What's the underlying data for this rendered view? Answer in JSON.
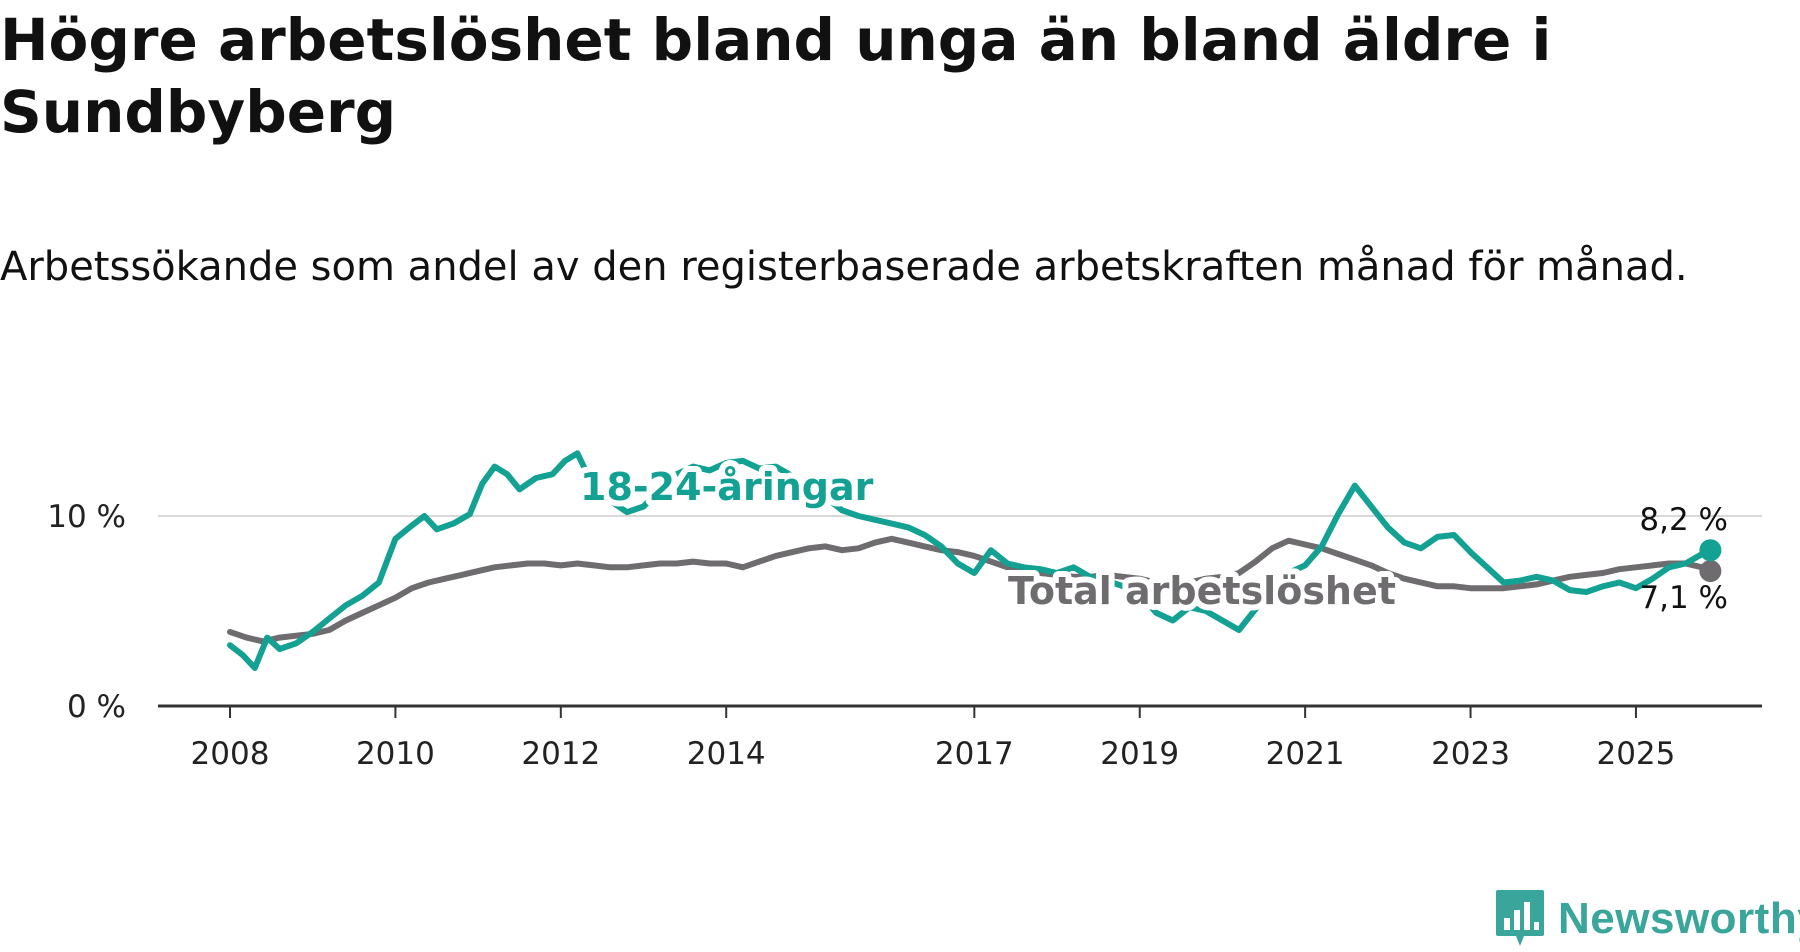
{
  "title": "Högre arbetslöshet bland unga än bland äldre i Sundbyberg",
  "subtitle": "Arbetssökande som andel av den registerbaserade arbetskraften månad för månad.",
  "logo": {
    "text": "Newsworthy",
    "icon": "bar-chart-speech-bubble-icon",
    "color": "#3aa59b"
  },
  "chart_data": {
    "type": "line",
    "title": "Högre arbetslöshet bland unga än bland äldre i Sundbyberg",
    "xlabel": "",
    "ylabel": "",
    "x_unit": "year",
    "xlim": [
      2008.0,
      2026.5
    ],
    "ylim": [
      0,
      12.5
    ],
    "y_ticks": [
      0,
      10
    ],
    "y_tick_labels": [
      "0 %",
      "10 %"
    ],
    "x_ticks": [
      2008,
      2010,
      2012,
      2014,
      2017,
      2019,
      2021,
      2023,
      2025
    ],
    "x_tick_labels": [
      "2008",
      "2010",
      "2012",
      "2014",
      "2017",
      "2019",
      "2021",
      "2023",
      "2025"
    ],
    "grid": "horizontal at 10",
    "series": [
      {
        "name": "Total arbetslöshet",
        "color": "#6f6c70",
        "label": "Total arbetslöshet",
        "end_label": "7,1 %",
        "end_value": 7.1,
        "points": [
          [
            2008.0,
            3.9
          ],
          [
            2008.2,
            3.6
          ],
          [
            2008.4,
            3.4
          ],
          [
            2008.6,
            3.6
          ],
          [
            2008.8,
            3.7
          ],
          [
            2009.0,
            3.8
          ],
          [
            2009.2,
            4.0
          ],
          [
            2009.4,
            4.5
          ],
          [
            2009.6,
            4.9
          ],
          [
            2009.8,
            5.3
          ],
          [
            2010.0,
            5.7
          ],
          [
            2010.2,
            6.2
          ],
          [
            2010.4,
            6.5
          ],
          [
            2010.6,
            6.7
          ],
          [
            2010.8,
            6.9
          ],
          [
            2011.0,
            7.1
          ],
          [
            2011.2,
            7.3
          ],
          [
            2011.4,
            7.4
          ],
          [
            2011.6,
            7.5
          ],
          [
            2011.8,
            7.5
          ],
          [
            2012.0,
            7.4
          ],
          [
            2012.2,
            7.5
          ],
          [
            2012.4,
            7.4
          ],
          [
            2012.6,
            7.3
          ],
          [
            2012.8,
            7.3
          ],
          [
            2013.0,
            7.4
          ],
          [
            2013.2,
            7.5
          ],
          [
            2013.4,
            7.5
          ],
          [
            2013.6,
            7.6
          ],
          [
            2013.8,
            7.5
          ],
          [
            2014.0,
            7.5
          ],
          [
            2014.2,
            7.3
          ],
          [
            2014.4,
            7.6
          ],
          [
            2014.6,
            7.9
          ],
          [
            2014.8,
            8.1
          ],
          [
            2015.0,
            8.3
          ],
          [
            2015.2,
            8.4
          ],
          [
            2015.4,
            8.2
          ],
          [
            2015.6,
            8.3
          ],
          [
            2015.8,
            8.6
          ],
          [
            2016.0,
            8.8
          ],
          [
            2016.2,
            8.6
          ],
          [
            2016.4,
            8.4
          ],
          [
            2016.6,
            8.2
          ],
          [
            2016.8,
            8.1
          ],
          [
            2017.0,
            7.9
          ],
          [
            2017.2,
            7.6
          ],
          [
            2017.4,
            7.3
          ],
          [
            2017.6,
            7.1
          ],
          [
            2017.8,
            7.0
          ],
          [
            2018.0,
            6.9
          ],
          [
            2018.2,
            6.8
          ],
          [
            2018.4,
            6.8
          ],
          [
            2018.6,
            6.9
          ],
          [
            2018.8,
            6.8
          ],
          [
            2019.0,
            6.7
          ],
          [
            2019.2,
            6.5
          ],
          [
            2019.4,
            6.4
          ],
          [
            2019.6,
            6.5
          ],
          [
            2019.8,
            6.7
          ],
          [
            2020.0,
            6.8
          ],
          [
            2020.2,
            7.0
          ],
          [
            2020.4,
            7.6
          ],
          [
            2020.6,
            8.3
          ],
          [
            2020.8,
            8.7
          ],
          [
            2021.0,
            8.5
          ],
          [
            2021.2,
            8.3
          ],
          [
            2021.4,
            8.0
          ],
          [
            2021.6,
            7.7
          ],
          [
            2021.8,
            7.4
          ],
          [
            2022.0,
            7.0
          ],
          [
            2022.2,
            6.7
          ],
          [
            2022.4,
            6.5
          ],
          [
            2022.6,
            6.3
          ],
          [
            2022.8,
            6.3
          ],
          [
            2023.0,
            6.2
          ],
          [
            2023.2,
            6.2
          ],
          [
            2023.4,
            6.2
          ],
          [
            2023.6,
            6.3
          ],
          [
            2023.8,
            6.4
          ],
          [
            2024.0,
            6.6
          ],
          [
            2024.2,
            6.8
          ],
          [
            2024.4,
            6.9
          ],
          [
            2024.6,
            7.0
          ],
          [
            2024.8,
            7.2
          ],
          [
            2025.0,
            7.3
          ],
          [
            2025.2,
            7.4
          ],
          [
            2025.4,
            7.5
          ],
          [
            2025.6,
            7.5
          ],
          [
            2025.8,
            7.3
          ],
          [
            2025.9,
            7.1
          ]
        ]
      },
      {
        "name": "18-24-åringar",
        "color": "#13a194",
        "label": "18-24-åringar",
        "end_label": "8,2 %",
        "end_value": 8.2,
        "points": [
          [
            2008.0,
            3.2
          ],
          [
            2008.15,
            2.7
          ],
          [
            2008.3,
            2.0
          ],
          [
            2008.45,
            3.6
          ],
          [
            2008.6,
            3.0
          ],
          [
            2008.8,
            3.3
          ],
          [
            2009.0,
            3.9
          ],
          [
            2009.2,
            4.6
          ],
          [
            2009.4,
            5.3
          ],
          [
            2009.6,
            5.8
          ],
          [
            2009.8,
            6.5
          ],
          [
            2010.0,
            8.8
          ],
          [
            2010.2,
            9.5
          ],
          [
            2010.35,
            10.0
          ],
          [
            2010.5,
            9.3
          ],
          [
            2010.7,
            9.6
          ],
          [
            2010.9,
            10.1
          ],
          [
            2011.05,
            11.7
          ],
          [
            2011.2,
            12.6
          ],
          [
            2011.35,
            12.2
          ],
          [
            2011.5,
            11.4
          ],
          [
            2011.7,
            12.0
          ],
          [
            2011.9,
            12.2
          ],
          [
            2012.05,
            12.9
          ],
          [
            2012.2,
            13.3
          ],
          [
            2012.4,
            11.5
          ],
          [
            2012.6,
            10.8
          ],
          [
            2012.8,
            10.2
          ],
          [
            2013.0,
            10.5
          ],
          [
            2013.2,
            11.4
          ],
          [
            2013.4,
            12.2
          ],
          [
            2013.6,
            12.6
          ],
          [
            2013.8,
            12.4
          ],
          [
            2014.0,
            12.8
          ],
          [
            2014.2,
            12.9
          ],
          [
            2014.4,
            12.5
          ],
          [
            2014.6,
            12.6
          ],
          [
            2014.8,
            12.1
          ],
          [
            2015.0,
            11.6
          ],
          [
            2015.2,
            11.0
          ],
          [
            2015.4,
            10.3
          ],
          [
            2015.6,
            10.0
          ],
          [
            2015.8,
            9.8
          ],
          [
            2016.0,
            9.6
          ],
          [
            2016.2,
            9.4
          ],
          [
            2016.4,
            9.0
          ],
          [
            2016.6,
            8.4
          ],
          [
            2016.8,
            7.5
          ],
          [
            2017.0,
            7.0
          ],
          [
            2017.2,
            8.2
          ],
          [
            2017.4,
            7.5
          ],
          [
            2017.6,
            7.3
          ],
          [
            2017.8,
            7.2
          ],
          [
            2018.0,
            7.0
          ],
          [
            2018.2,
            7.3
          ],
          [
            2018.4,
            6.8
          ],
          [
            2018.6,
            6.6
          ],
          [
            2018.8,
            6.3
          ],
          [
            2019.0,
            5.9
          ],
          [
            2019.2,
            4.9
          ],
          [
            2019.4,
            4.5
          ],
          [
            2019.6,
            5.2
          ],
          [
            2019.8,
            5.0
          ],
          [
            2020.0,
            4.5
          ],
          [
            2020.2,
            4.0
          ],
          [
            2020.4,
            5.1
          ],
          [
            2020.6,
            6.2
          ],
          [
            2020.8,
            7.0
          ],
          [
            2021.0,
            7.4
          ],
          [
            2021.2,
            8.4
          ],
          [
            2021.4,
            10.1
          ],
          [
            2021.6,
            11.6
          ],
          [
            2021.8,
            10.5
          ],
          [
            2022.0,
            9.4
          ],
          [
            2022.2,
            8.6
          ],
          [
            2022.4,
            8.3
          ],
          [
            2022.6,
            8.9
          ],
          [
            2022.8,
            9.0
          ],
          [
            2023.0,
            8.1
          ],
          [
            2023.2,
            7.3
          ],
          [
            2023.4,
            6.5
          ],
          [
            2023.6,
            6.6
          ],
          [
            2023.8,
            6.8
          ],
          [
            2024.0,
            6.6
          ],
          [
            2024.2,
            6.1
          ],
          [
            2024.4,
            6.0
          ],
          [
            2024.6,
            6.3
          ],
          [
            2024.8,
            6.5
          ],
          [
            2025.0,
            6.2
          ],
          [
            2025.2,
            6.7
          ],
          [
            2025.4,
            7.3
          ],
          [
            2025.6,
            7.5
          ],
          [
            2025.8,
            8.0
          ],
          [
            2025.9,
            8.2
          ]
        ]
      }
    ]
  }
}
